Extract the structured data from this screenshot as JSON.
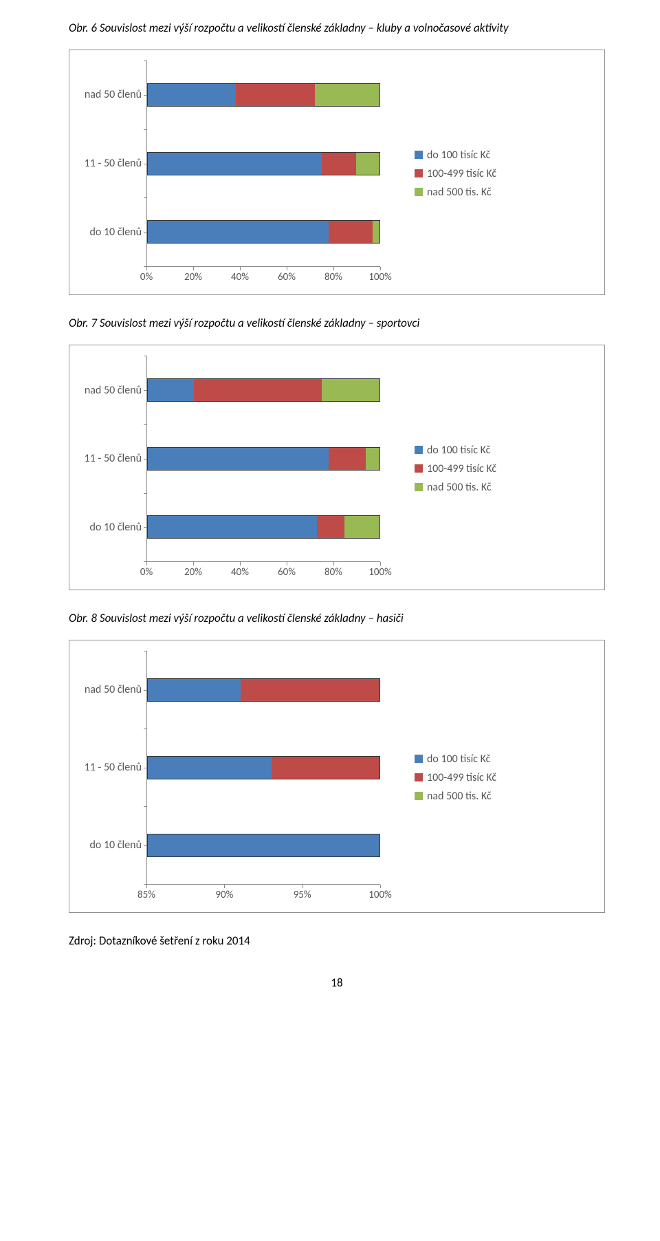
{
  "colors": {
    "blue": "#4a7ebb",
    "red": "#be4b48",
    "green": "#98b954",
    "border": "#888888"
  },
  "chart6": {
    "title": "Obr. 6 Souvislost mezi výší rozpočtu a velikostí členské základny – kluby a volnočasové aktivity",
    "categories": [
      "nad 50 členů",
      "11 - 50 členů",
      "do 10 členů"
    ],
    "series": [
      {
        "label": "do 100 tisíc Kč",
        "color": "#4a7ebb"
      },
      {
        "label": "100-499 tisíc Kč",
        "color": "#be4b48"
      },
      {
        "label": "nad 500 tis. Kč",
        "color": "#98b954"
      }
    ],
    "data": [
      [
        38,
        34,
        28
      ],
      [
        75,
        15,
        10
      ],
      [
        78,
        19,
        3
      ]
    ],
    "xticks": [
      "0%",
      "20%",
      "40%",
      "60%",
      "80%",
      "100%"
    ],
    "xtick_pos": [
      0,
      20,
      40,
      60,
      80,
      100
    ]
  },
  "chart7": {
    "title": "Obr. 7 Souvislost mezi výší rozpočtu a velikostí členské základny – sportovci",
    "categories": [
      "nad 50 členů",
      "11 - 50 členů",
      "do 10 členů"
    ],
    "series": [
      {
        "label": "do 100 tisíc Kč",
        "color": "#4a7ebb"
      },
      {
        "label": "100-499 tisíc Kč",
        "color": "#be4b48"
      },
      {
        "label": "nad 500 tis. Kč",
        "color": "#98b954"
      }
    ],
    "data": [
      [
        20,
        55,
        25
      ],
      [
        78,
        16,
        6
      ],
      [
        73,
        12,
        15
      ]
    ],
    "xticks": [
      "0%",
      "20%",
      "40%",
      "60%",
      "80%",
      "100%"
    ],
    "xtick_pos": [
      0,
      20,
      40,
      60,
      80,
      100
    ]
  },
  "chart8": {
    "title": "Obr. 8 Souvislost mezi výší rozpočtu a velikostí členské základny – hasiči",
    "categories": [
      "nad 50 členů",
      "11 - 50 členů",
      "do 10 členů"
    ],
    "series": [
      {
        "label": "do 100 tisíc Kč",
        "color": "#4a7ebb"
      },
      {
        "label": "100-499 tisíc Kč",
        "color": "#be4b48"
      },
      {
        "label": "nad 500 tis. Kč",
        "color": "#98b954"
      }
    ],
    "data": [
      [
        91,
        9,
        0
      ],
      [
        93,
        7,
        0
      ],
      [
        100,
        0,
        0
      ]
    ],
    "xmin": 85,
    "xmax": 100,
    "xticks": [
      "85%",
      "90%",
      "95%",
      "100%"
    ],
    "xtick_pos": [
      85,
      90,
      95,
      100
    ]
  },
  "source": "Zdroj: Dotazníkové šetření z roku 2014",
  "page_number": "18"
}
